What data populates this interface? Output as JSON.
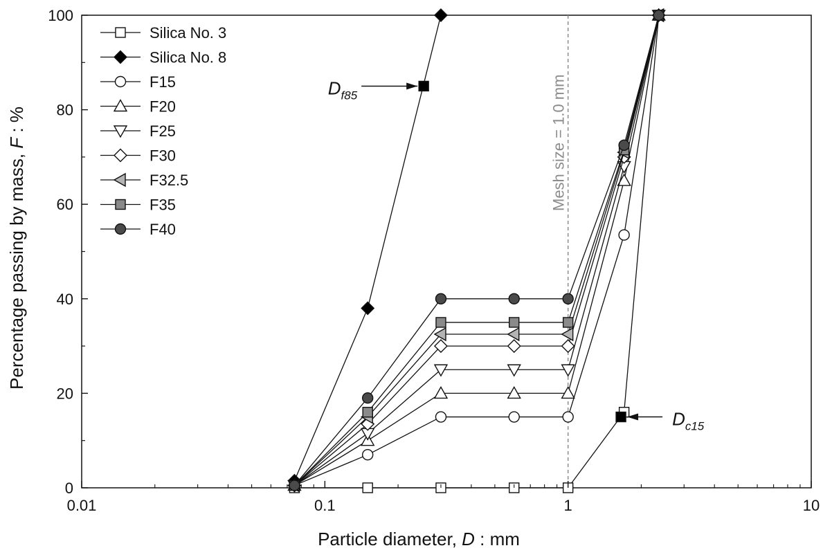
{
  "chart_data": {
    "type": "line",
    "xlabel_parts": [
      "Particle diameter, ",
      "D",
      " : mm"
    ],
    "ylabel_parts": [
      "Percentage passing by mass, ",
      "F",
      " : %"
    ],
    "x_scale": "log",
    "xlim": [
      0.01,
      10
    ],
    "ylim": [
      0,
      100
    ],
    "x_ticks": [
      0.01,
      0.1,
      1,
      10
    ],
    "x_tick_labels": [
      "0.01",
      "0.1",
      "1",
      "10"
    ],
    "y_ticks": [
      0,
      20,
      40,
      60,
      80,
      100
    ],
    "y_tick_labels": [
      "0",
      "20",
      "40",
      "60",
      "80",
      "100"
    ],
    "grid": false,
    "legend_position": "top-left",
    "series": [
      {
        "name": "Silica No. 3",
        "marker": "square",
        "fill": "#ffffff",
        "x": [
          0.075,
          0.15,
          0.3,
          0.6,
          1.0,
          1.7,
          2.36
        ],
        "y": [
          0,
          0,
          0,
          0,
          0,
          16,
          100
        ]
      },
      {
        "name": "Silica No. 8",
        "marker": "diamond",
        "fill": "#000000",
        "x": [
          0.075,
          0.15,
          0.3
        ],
        "y": [
          1.5,
          38,
          100
        ]
      },
      {
        "name": "F15",
        "marker": "circle",
        "fill": "#ffffff",
        "x": [
          0.075,
          0.15,
          0.3,
          0.6,
          1.0,
          1.7,
          2.36
        ],
        "y": [
          0.5,
          7,
          15,
          15,
          15,
          53.5,
          100
        ]
      },
      {
        "name": "F20",
        "marker": "triangle-up",
        "fill": "#ffffff",
        "x": [
          0.075,
          0.15,
          0.3,
          0.6,
          1.0,
          1.7,
          2.36
        ],
        "y": [
          0.5,
          10,
          20,
          20,
          20,
          65,
          100
        ]
      },
      {
        "name": "F25",
        "marker": "triangle-down",
        "fill": "#ffffff",
        "x": [
          0.075,
          0.15,
          0.3,
          0.6,
          1.0,
          1.7,
          2.36
        ],
        "y": [
          0.5,
          11.5,
          25,
          25,
          25,
          68,
          100
        ]
      },
      {
        "name": "F30",
        "marker": "diamond",
        "fill": "#ffffff",
        "x": [
          0.075,
          0.15,
          0.3,
          0.6,
          1.0,
          1.7,
          2.36
        ],
        "y": [
          0.5,
          13.5,
          30,
          30,
          30,
          70,
          100
        ]
      },
      {
        "name": "F32.5",
        "marker": "triangle-left",
        "fill": "#b4b4b4",
        "x": [
          0.075,
          0.15,
          0.3,
          0.6,
          1.0,
          1.7,
          2.36
        ],
        "y": [
          0.5,
          15,
          32.5,
          32.5,
          32.5,
          71,
          100
        ]
      },
      {
        "name": "F35",
        "marker": "square",
        "fill": "#8a8a8a",
        "x": [
          0.075,
          0.15,
          0.3,
          0.6,
          1.0,
          1.7,
          2.36
        ],
        "y": [
          0.5,
          16,
          35,
          35,
          35,
          71.5,
          100
        ]
      },
      {
        "name": "F40",
        "marker": "circle",
        "fill": "#4a4a4a",
        "x": [
          0.075,
          0.15,
          0.3,
          0.6,
          1.0,
          1.7,
          2.36
        ],
        "y": [
          0.5,
          19,
          40,
          40,
          40,
          72.5,
          100
        ]
      }
    ],
    "annotations": [
      {
        "label_main": "D",
        "label_sub": "f85",
        "x": 0.255,
        "y": 85,
        "marker": "square",
        "fill": "#000000",
        "arrow_from": "left"
      },
      {
        "label_main": "D",
        "label_sub": "c15",
        "x": 1.65,
        "y": 15,
        "marker": "square",
        "fill": "#000000",
        "arrow_from": "right"
      }
    ],
    "reference_line": {
      "x": 1.0,
      "label": "Mesh size = 1.0 mm",
      "color": "#8c8c8c",
      "style": "dashed"
    }
  }
}
